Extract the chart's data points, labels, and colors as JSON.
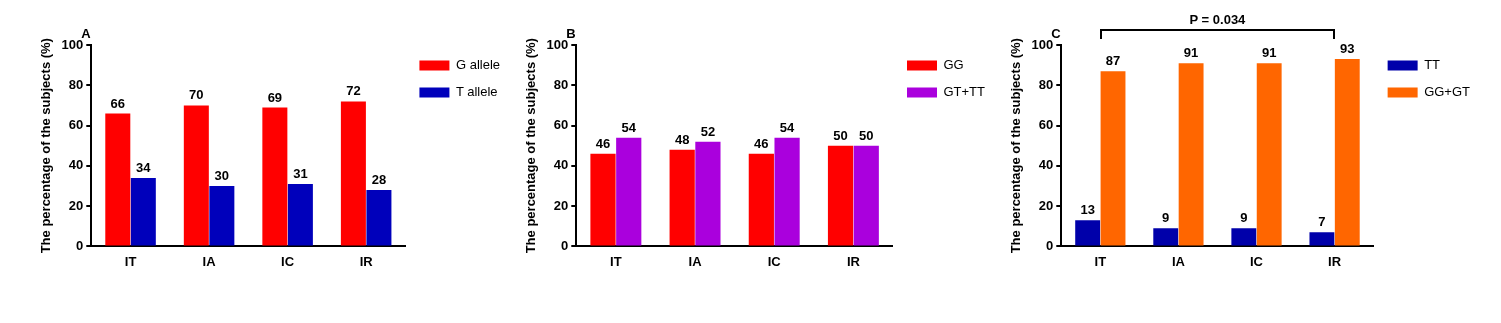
{
  "chart_data": [
    {
      "type": "bar",
      "title": "A",
      "ylabel": "The percentage of the subjects (%)",
      "categories": [
        "IT",
        "IA",
        "IC",
        "IR"
      ],
      "series": [
        {
          "name": "G allele",
          "color": "#ff0000",
          "values": [
            66,
            70,
            69,
            72
          ]
        },
        {
          "name": "T allele",
          "color": "#0000bb",
          "values": [
            34,
            30,
            31,
            28
          ]
        }
      ],
      "ylim": [
        0,
        100
      ],
      "yticks": [
        0,
        20,
        40,
        60,
        80,
        100
      ],
      "grid": false,
      "legend": "right",
      "data_labels": true
    },
    {
      "type": "bar",
      "title": "B",
      "ylabel": "The percentage of the subjects (%)",
      "categories": [
        "IT",
        "IA",
        "IC",
        "IR"
      ],
      "series": [
        {
          "name": "GG",
          "color": "#ff0000",
          "values": [
            46,
            48,
            46,
            50
          ]
        },
        {
          "name": "GT+TT",
          "color": "#aa00dd",
          "values": [
            54,
            52,
            54,
            50
          ]
        }
      ],
      "ylim": [
        0,
        100
      ],
      "yticks": [
        0,
        20,
        40,
        60,
        80,
        100
      ],
      "grid": false,
      "legend": "right",
      "data_labels": true
    },
    {
      "type": "bar",
      "title": "C",
      "ylabel": "The percentage of the subjects (%)",
      "categories": [
        "IT",
        "IA",
        "IC",
        "IR"
      ],
      "series": [
        {
          "name": "TT",
          "color": "#0000aa",
          "values": [
            13,
            9,
            9,
            7
          ]
        },
        {
          "name": "GG+GT",
          "color": "#ff6600",
          "values": [
            87,
            91,
            91,
            93
          ]
        }
      ],
      "ylim": [
        0,
        100
      ],
      "yticks": [
        0,
        20,
        40,
        60,
        80,
        100
      ],
      "grid": false,
      "legend": "right",
      "data_labels": true,
      "annotations": [
        "P = 0.034"
      ]
    }
  ]
}
